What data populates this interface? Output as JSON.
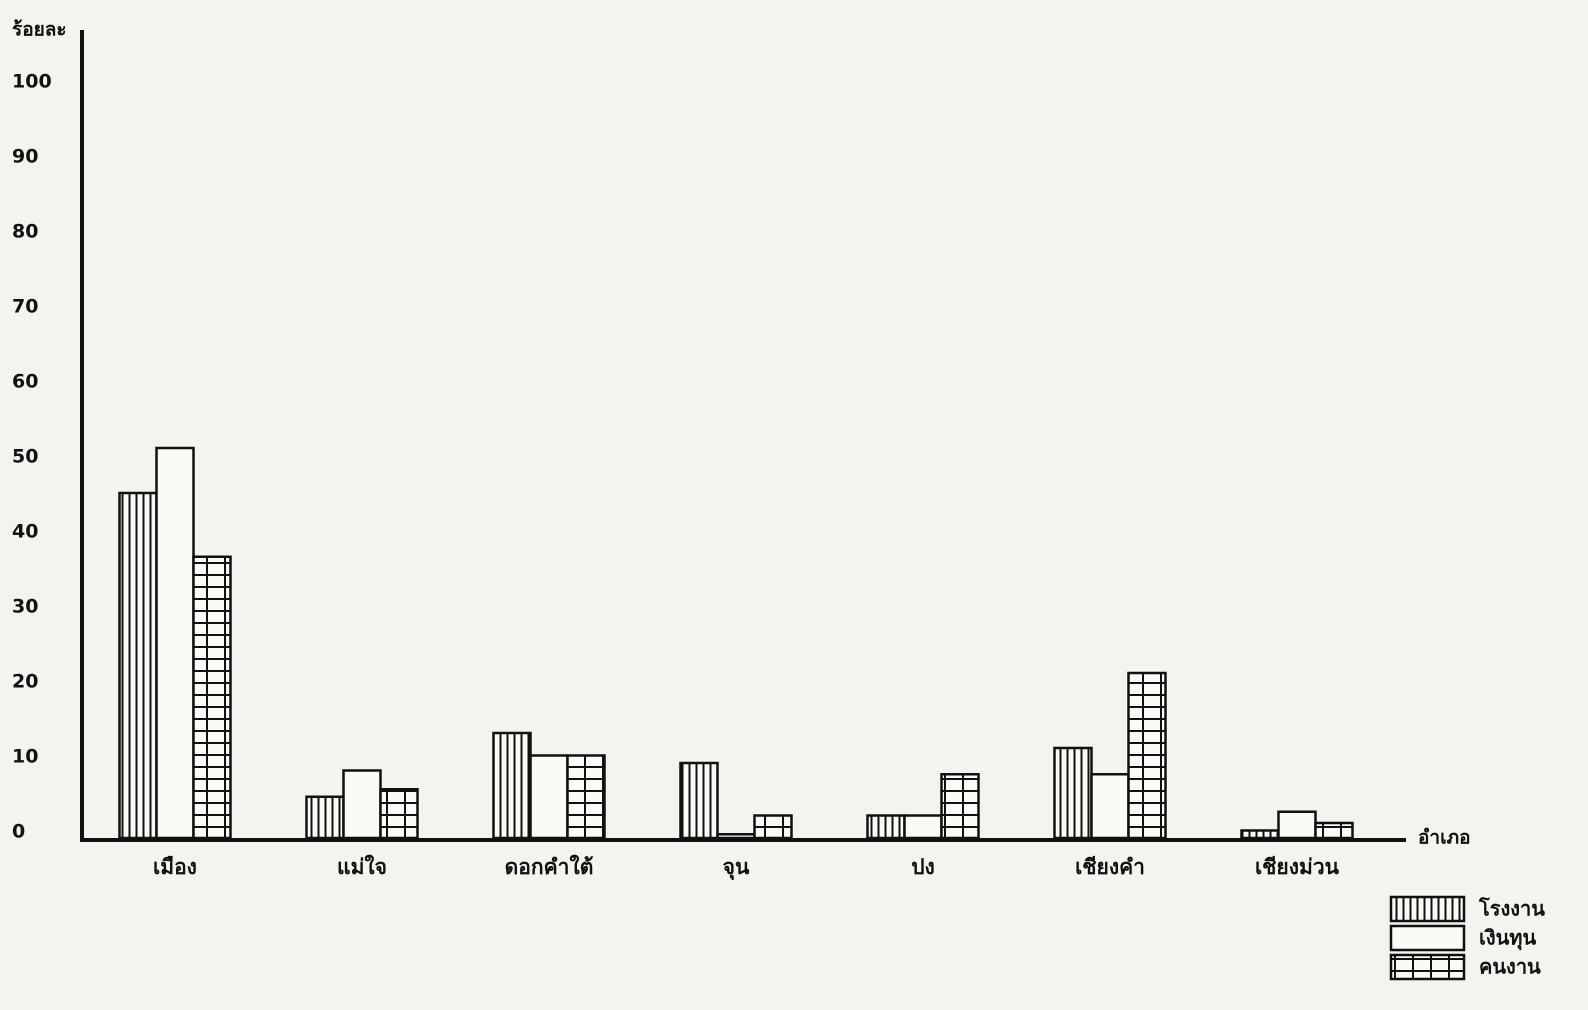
{
  "chart_data": {
    "type": "bar",
    "y_label": "ร้อยละ",
    "x_label": "อำเภอ",
    "categories": [
      "เมือง",
      "แม่ใจ",
      "ดอกคำใต้",
      "จุน",
      "ปง",
      "เชียงคำ",
      "เชียงม่วน"
    ],
    "series": [
      {
        "name": "โรงงาน",
        "color": "#111111",
        "pattern": "vertical-lines",
        "values": [
          46,
          5.5,
          14,
          10,
          3,
          12,
          1
        ]
      },
      {
        "name": "เงินทุน",
        "color": "#111111",
        "pattern": "none",
        "values": [
          52,
          9,
          11,
          0.5,
          3,
          8.5,
          3.5
        ]
      },
      {
        "name": "คนงาน",
        "color": "#111111",
        "pattern": "grid",
        "values": [
          37.5,
          6.5,
          11,
          3,
          8.5,
          22,
          2
        ]
      }
    ],
    "ylim": [
      0,
      100
    ],
    "yticks": [
      0,
      10,
      20,
      30,
      40,
      50,
      60,
      70,
      80,
      90,
      100
    ],
    "grid": false,
    "legend": "bottom-right"
  }
}
